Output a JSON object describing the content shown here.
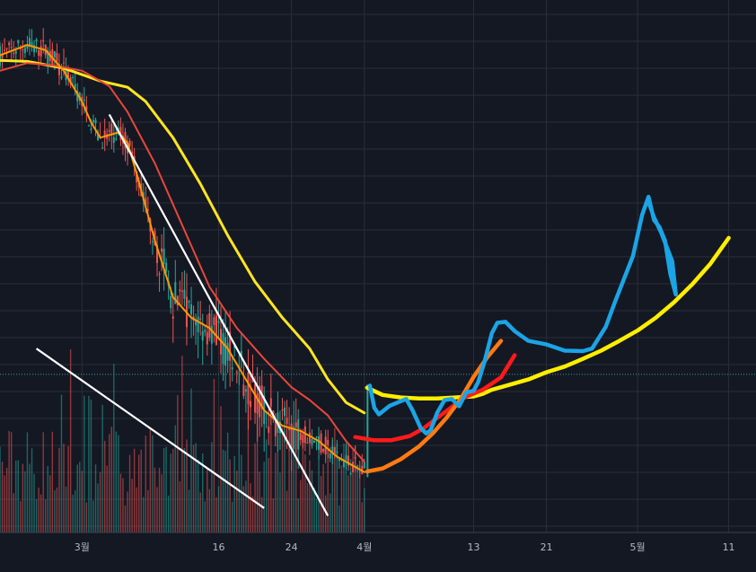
{
  "chart_data": {
    "type": "candlestick-with-drawings",
    "title": "",
    "xlabel": "",
    "ylabel": "",
    "grid": true,
    "legend": "none",
    "x_ticks": [
      {
        "label": "3월",
        "day": 0
      },
      {
        "label": "16",
        "day": 15
      },
      {
        "label": "24",
        "day": 23
      },
      {
        "label": "4월",
        "day 31": null,
        "day": 31
      },
      {
        "label": "13",
        "day": 43
      },
      {
        "label": "21",
        "day": 51
      },
      {
        "label": "5월",
        "day": 61
      },
      {
        "label": "11",
        "day": 71
      }
    ],
    "x_range_days": [
      -9,
      74
    ],
    "y_range": [
      0,
      100
    ],
    "reference_level": 29,
    "colors": {
      "background": "#141823",
      "grid": "#2a2e39",
      "up": "#26a69a",
      "down": "#ef5350",
      "reference": "#26a69a",
      "ma_fast": "#ff9800",
      "ma_mid": "#e8473a",
      "ma_slow": "#ffe51f",
      "trendline": "#ffffff",
      "draw_blue": "#1ba4e6",
      "draw_yellow": "#ffee00",
      "draw_red": "#ff1a1a",
      "draw_orange": "#ff7a12"
    },
    "moving_averages": [
      {
        "color": "#ffe51f",
        "points": [
          [
            -9,
            90
          ],
          [
            -6,
            89.8
          ],
          [
            -2,
            88.5
          ],
          [
            2,
            86
          ],
          [
            5,
            84.8
          ],
          [
            7,
            82
          ],
          [
            10,
            75
          ],
          [
            13,
            66
          ],
          [
            16,
            56
          ],
          [
            19,
            47
          ],
          [
            22,
            40
          ],
          [
            25,
            34
          ],
          [
            27,
            28
          ],
          [
            29,
            23.5
          ],
          [
            31,
            21.5
          ]
        ]
      },
      {
        "color": "#e8473a",
        "points": [
          [
            -9,
            88
          ],
          [
            -6,
            89.5
          ],
          [
            -3,
            89
          ],
          [
            0,
            88
          ],
          [
            3,
            85
          ],
          [
            5,
            80
          ],
          [
            8,
            70
          ],
          [
            11,
            58
          ],
          [
            14,
            46
          ],
          [
            17,
            38
          ],
          [
            20,
            32
          ],
          [
            23,
            26.5
          ],
          [
            25,
            24
          ],
          [
            27,
            21
          ],
          [
            29,
            16
          ],
          [
            31,
            12
          ]
        ]
      },
      {
        "color": "#ff9800",
        "points": [
          [
            -9,
            91
          ],
          [
            -6,
            93
          ],
          [
            -4,
            92
          ],
          [
            -2,
            88
          ],
          [
            0,
            82
          ],
          [
            1,
            78
          ],
          [
            2,
            75
          ],
          [
            4,
            76
          ],
          [
            5,
            74
          ],
          [
            6,
            68
          ],
          [
            8,
            55
          ],
          [
            10,
            44
          ],
          [
            12,
            40
          ],
          [
            14,
            38
          ],
          [
            16,
            34
          ],
          [
            18,
            28
          ],
          [
            20,
            22
          ],
          [
            22,
            19
          ],
          [
            24,
            18
          ],
          [
            26,
            16
          ],
          [
            28,
            13
          ],
          [
            30,
            11
          ],
          [
            31,
            10
          ]
        ]
      }
    ],
    "trendlines": [
      {
        "color": "#ffffff",
        "from": [
          3,
          79.5
        ],
        "to": [
          27,
          1.5
        ]
      },
      {
        "color": "#ffffff",
        "from": [
          -5,
          34
        ],
        "to": [
          20,
          3
        ]
      }
    ],
    "drawings": [
      {
        "color": "#ffee00",
        "points": [
          [
            31.3,
            26.4
          ],
          [
            33,
            25
          ],
          [
            35,
            24.5
          ],
          [
            37,
            24.3
          ],
          [
            39,
            24.3
          ],
          [
            41,
            24.5
          ],
          [
            43,
            24.7
          ],
          [
            44,
            25.2
          ],
          [
            45,
            26
          ],
          [
            46,
            26.5
          ],
          [
            47,
            27
          ],
          [
            49,
            28
          ],
          [
            51,
            29.4
          ],
          [
            53,
            30.5
          ],
          [
            55,
            32
          ],
          [
            57,
            33.6
          ],
          [
            59,
            35.5
          ],
          [
            61,
            37.5
          ],
          [
            63,
            40
          ],
          [
            65,
            43
          ],
          [
            67,
            46.5
          ],
          [
            69,
            50.5
          ],
          [
            71,
            55.5
          ]
        ]
      },
      {
        "color": "#ff1a1a",
        "points": [
          [
            30,
            16.8
          ],
          [
            32,
            16.2
          ],
          [
            34,
            16.2
          ],
          [
            36,
            17
          ],
          [
            37.5,
            18.5
          ],
          [
            39,
            20.5
          ],
          [
            40.5,
            22.5
          ],
          [
            42,
            24.5
          ],
          [
            44,
            26
          ],
          [
            46,
            28.4
          ],
          [
            47.5,
            32.7
          ]
        ]
      },
      {
        "color": "#ff7a12",
        "points": [
          [
            31.3,
            10.1
          ],
          [
            33,
            10.7
          ],
          [
            35,
            12.5
          ],
          [
            37,
            15
          ],
          [
            38.5,
            17.5
          ],
          [
            40,
            20.5
          ],
          [
            41.5,
            24
          ],
          [
            43,
            28.5
          ],
          [
            44.5,
            32.3
          ],
          [
            46,
            35.5
          ]
        ]
      },
      {
        "color": "#1ba4e6",
        "points": [
          [
            31.6,
            26.8
          ],
          [
            32.1,
            22.5
          ],
          [
            32.6,
            21.2
          ],
          [
            33.8,
            22.9
          ],
          [
            35.6,
            24.2
          ],
          [
            36.3,
            22
          ],
          [
            37.2,
            18.5
          ],
          [
            37.8,
            17.5
          ],
          [
            38.3,
            18.2
          ],
          [
            39,
            21.5
          ],
          [
            39.8,
            24
          ],
          [
            40.6,
            24.2
          ],
          [
            41.4,
            22.8
          ],
          [
            42.2,
            25.5
          ],
          [
            43,
            25.8
          ],
          [
            43.5,
            27.5
          ],
          [
            44.2,
            31.5
          ],
          [
            45,
            37
          ],
          [
            45.6,
            39
          ],
          [
            46.5,
            39.2
          ],
          [
            47.5,
            37.4
          ],
          [
            49,
            35.5
          ],
          [
            51,
            34.8
          ],
          [
            53,
            33.6
          ],
          [
            55,
            33.5
          ],
          [
            56,
            34
          ],
          [
            57.5,
            38.2
          ],
          [
            58.5,
            43
          ],
          [
            59.5,
            47.5
          ],
          [
            60.5,
            52
          ],
          [
            61.5,
            60
          ],
          [
            62.2,
            63.5
          ],
          [
            62.8,
            59
          ],
          [
            63.4,
            57.6
          ],
          [
            64,
            55
          ],
          [
            64.6,
            48.5
          ],
          [
            65.2,
            44.5
          ],
          [
            64.8,
            51
          ],
          [
            63.6,
            56.5
          ],
          [
            62.8,
            59.5
          ],
          [
            62.2,
            62.5
          ]
        ]
      }
    ]
  }
}
